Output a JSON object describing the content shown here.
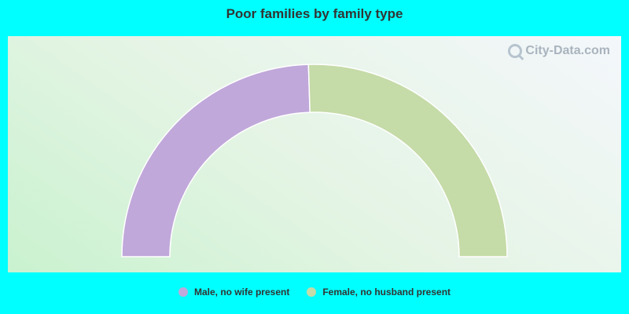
{
  "chart_data": {
    "type": "pie",
    "title": "Poor families by family type",
    "style": "half-donut",
    "series": [
      {
        "name": "Male, no wife present",
        "value": 49,
        "color": "#c0a8da"
      },
      {
        "name": "Female, no husband present",
        "value": 51,
        "color": "#c5dba8"
      }
    ]
  },
  "watermark": {
    "text": "City-Data.com",
    "icon": "magnifier-icon"
  }
}
